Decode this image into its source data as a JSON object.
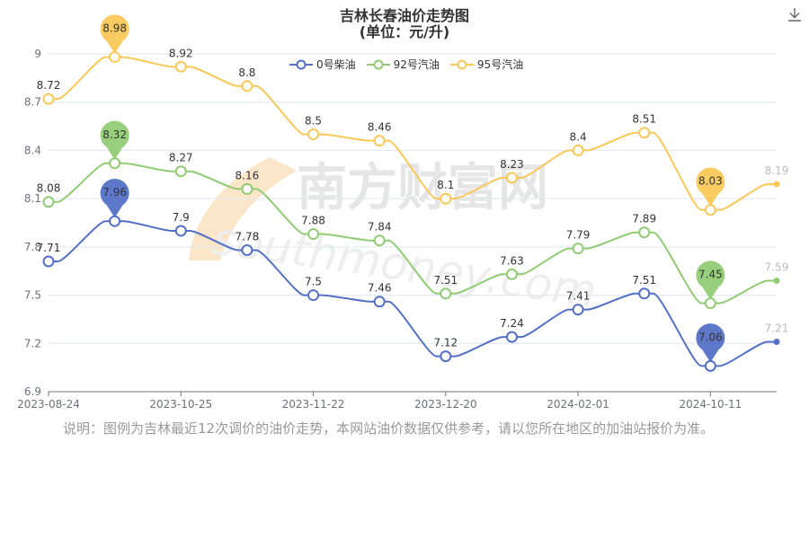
{
  "title": "吉林长春油价走势图",
  "subtitle": "(单位：元/升)",
  "watermark": "南方财富网",
  "watermark_sub": "southmoney.com",
  "note": "说明：图例为吉林最近12次调价的油价走势，本网站油价数据仅供参考，请以您所在地区的加油站报价为准。",
  "download_icon": "download-icon",
  "chart_data": {
    "type": "line",
    "x": [
      "2023-08-24",
      "",
      "2023-10-25",
      "",
      "2023-11-22",
      "",
      "2023-12-20",
      "",
      "2024-02-01",
      "",
      "2024-10-11",
      ""
    ],
    "x_tick_labels": [
      "2023-08-24",
      "2023-10-25",
      "2023-11-22",
      "2023-12-20",
      "2024-02-01",
      "2024-10-11"
    ],
    "ylim": [
      6.9,
      9.0
    ],
    "y_ticks": [
      6.9,
      7.2,
      7.5,
      7.8,
      8.1,
      8.4,
      8.7,
      9
    ],
    "grid": true,
    "legend_position": "top-center",
    "series": [
      {
        "name": "0号柴油",
        "color": "#5470c6",
        "values": [
          7.71,
          7.96,
          7.9,
          7.78,
          7.5,
          7.46,
          7.12,
          7.24,
          7.41,
          7.51,
          7.06,
          7.21
        ],
        "max_value": "7.96",
        "min_value": "7.06"
      },
      {
        "name": "92号汽油",
        "color": "#91cc75",
        "values": [
          8.08,
          8.32,
          8.27,
          8.16,
          7.88,
          7.84,
          7.51,
          7.63,
          7.79,
          7.89,
          7.45,
          7.59
        ],
        "max_value": "8.32",
        "min_value": "7.45"
      },
      {
        "name": "95号汽油",
        "color": "#fac858",
        "values": [
          8.72,
          8.98,
          8.92,
          8.8,
          8.5,
          8.46,
          8.1,
          8.23,
          8.4,
          8.51,
          8.03,
          8.19
        ],
        "max_value": "8.98",
        "min_value": "8.03"
      }
    ]
  }
}
